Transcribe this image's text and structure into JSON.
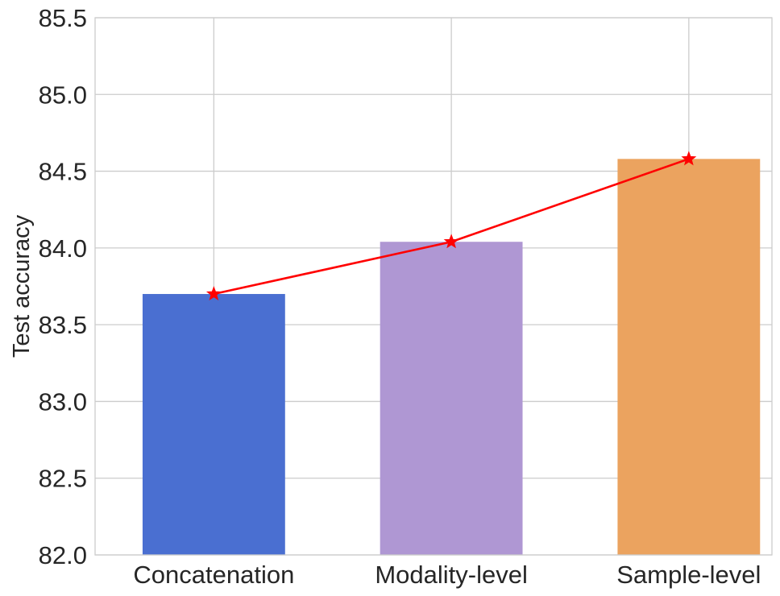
{
  "chart_data": {
    "type": "bar",
    "categories": [
      "Concatenation",
      "Modality-level",
      "Sample-level"
    ],
    "values": [
      83.7,
      84.04,
      84.58
    ],
    "bar_colors": [
      "#4a6fd1",
      "#af97d3",
      "#eba35f"
    ],
    "overlay_line": {
      "values": [
        83.7,
        84.04,
        84.58
      ],
      "color": "#ff0000",
      "marker": "star"
    },
    "ylabel": "Test accuracy",
    "ylim": [
      82.0,
      85.5
    ],
    "yticks": [
      "82.0",
      "82.5",
      "83.0",
      "83.5",
      "84.0",
      "84.5",
      "85.0",
      "85.5"
    ],
    "grid": true
  }
}
